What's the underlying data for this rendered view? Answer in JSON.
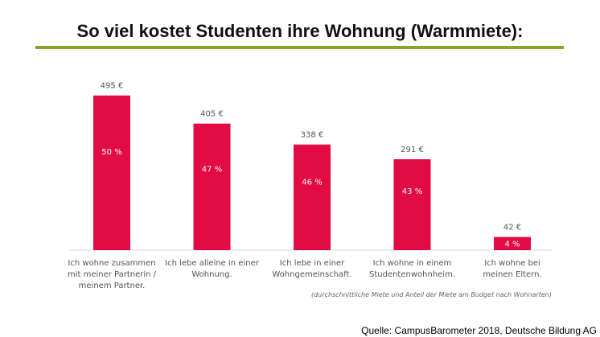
{
  "title": "So viel kostet Studenten ihre Wohnung (Warmmiete):",
  "colors": {
    "accent_rule": "#8aa628",
    "bar": "#e30b44"
  },
  "note": "(durchschnittliche Miete und Anteil der Miete am Budget nach Wohnarten)",
  "source": "Quelle: CampusBarometer 2018, Deutsche Bildung AG",
  "chart_data": {
    "type": "bar",
    "title": "So viel kostet Studenten ihre Wohnung (Warmmiete):",
    "xlabel": "",
    "ylabel": "",
    "ylim": [
      0,
      520
    ],
    "grid": false,
    "categories": [
      [
        "Ich wohne zusammen",
        "mit meiner Partnerin /",
        "meinem Partner."
      ],
      [
        "Ich lebe alleine in einer",
        "Wohnung."
      ],
      [
        "Ich lebe in einer",
        "Wohngemeinschaft."
      ],
      [
        "Ich wohne in einem",
        "Studentenwohnheim."
      ],
      [
        "Ich wohne bei",
        "meinen Eltern."
      ]
    ],
    "values": [
      495,
      405,
      338,
      291,
      42
    ],
    "value_labels": [
      "495 €",
      "405 €",
      "338 €",
      "291 €",
      "42 €"
    ],
    "share_labels": [
      "50 %",
      "47 %",
      "46 %",
      "43 %",
      "4 %"
    ]
  }
}
